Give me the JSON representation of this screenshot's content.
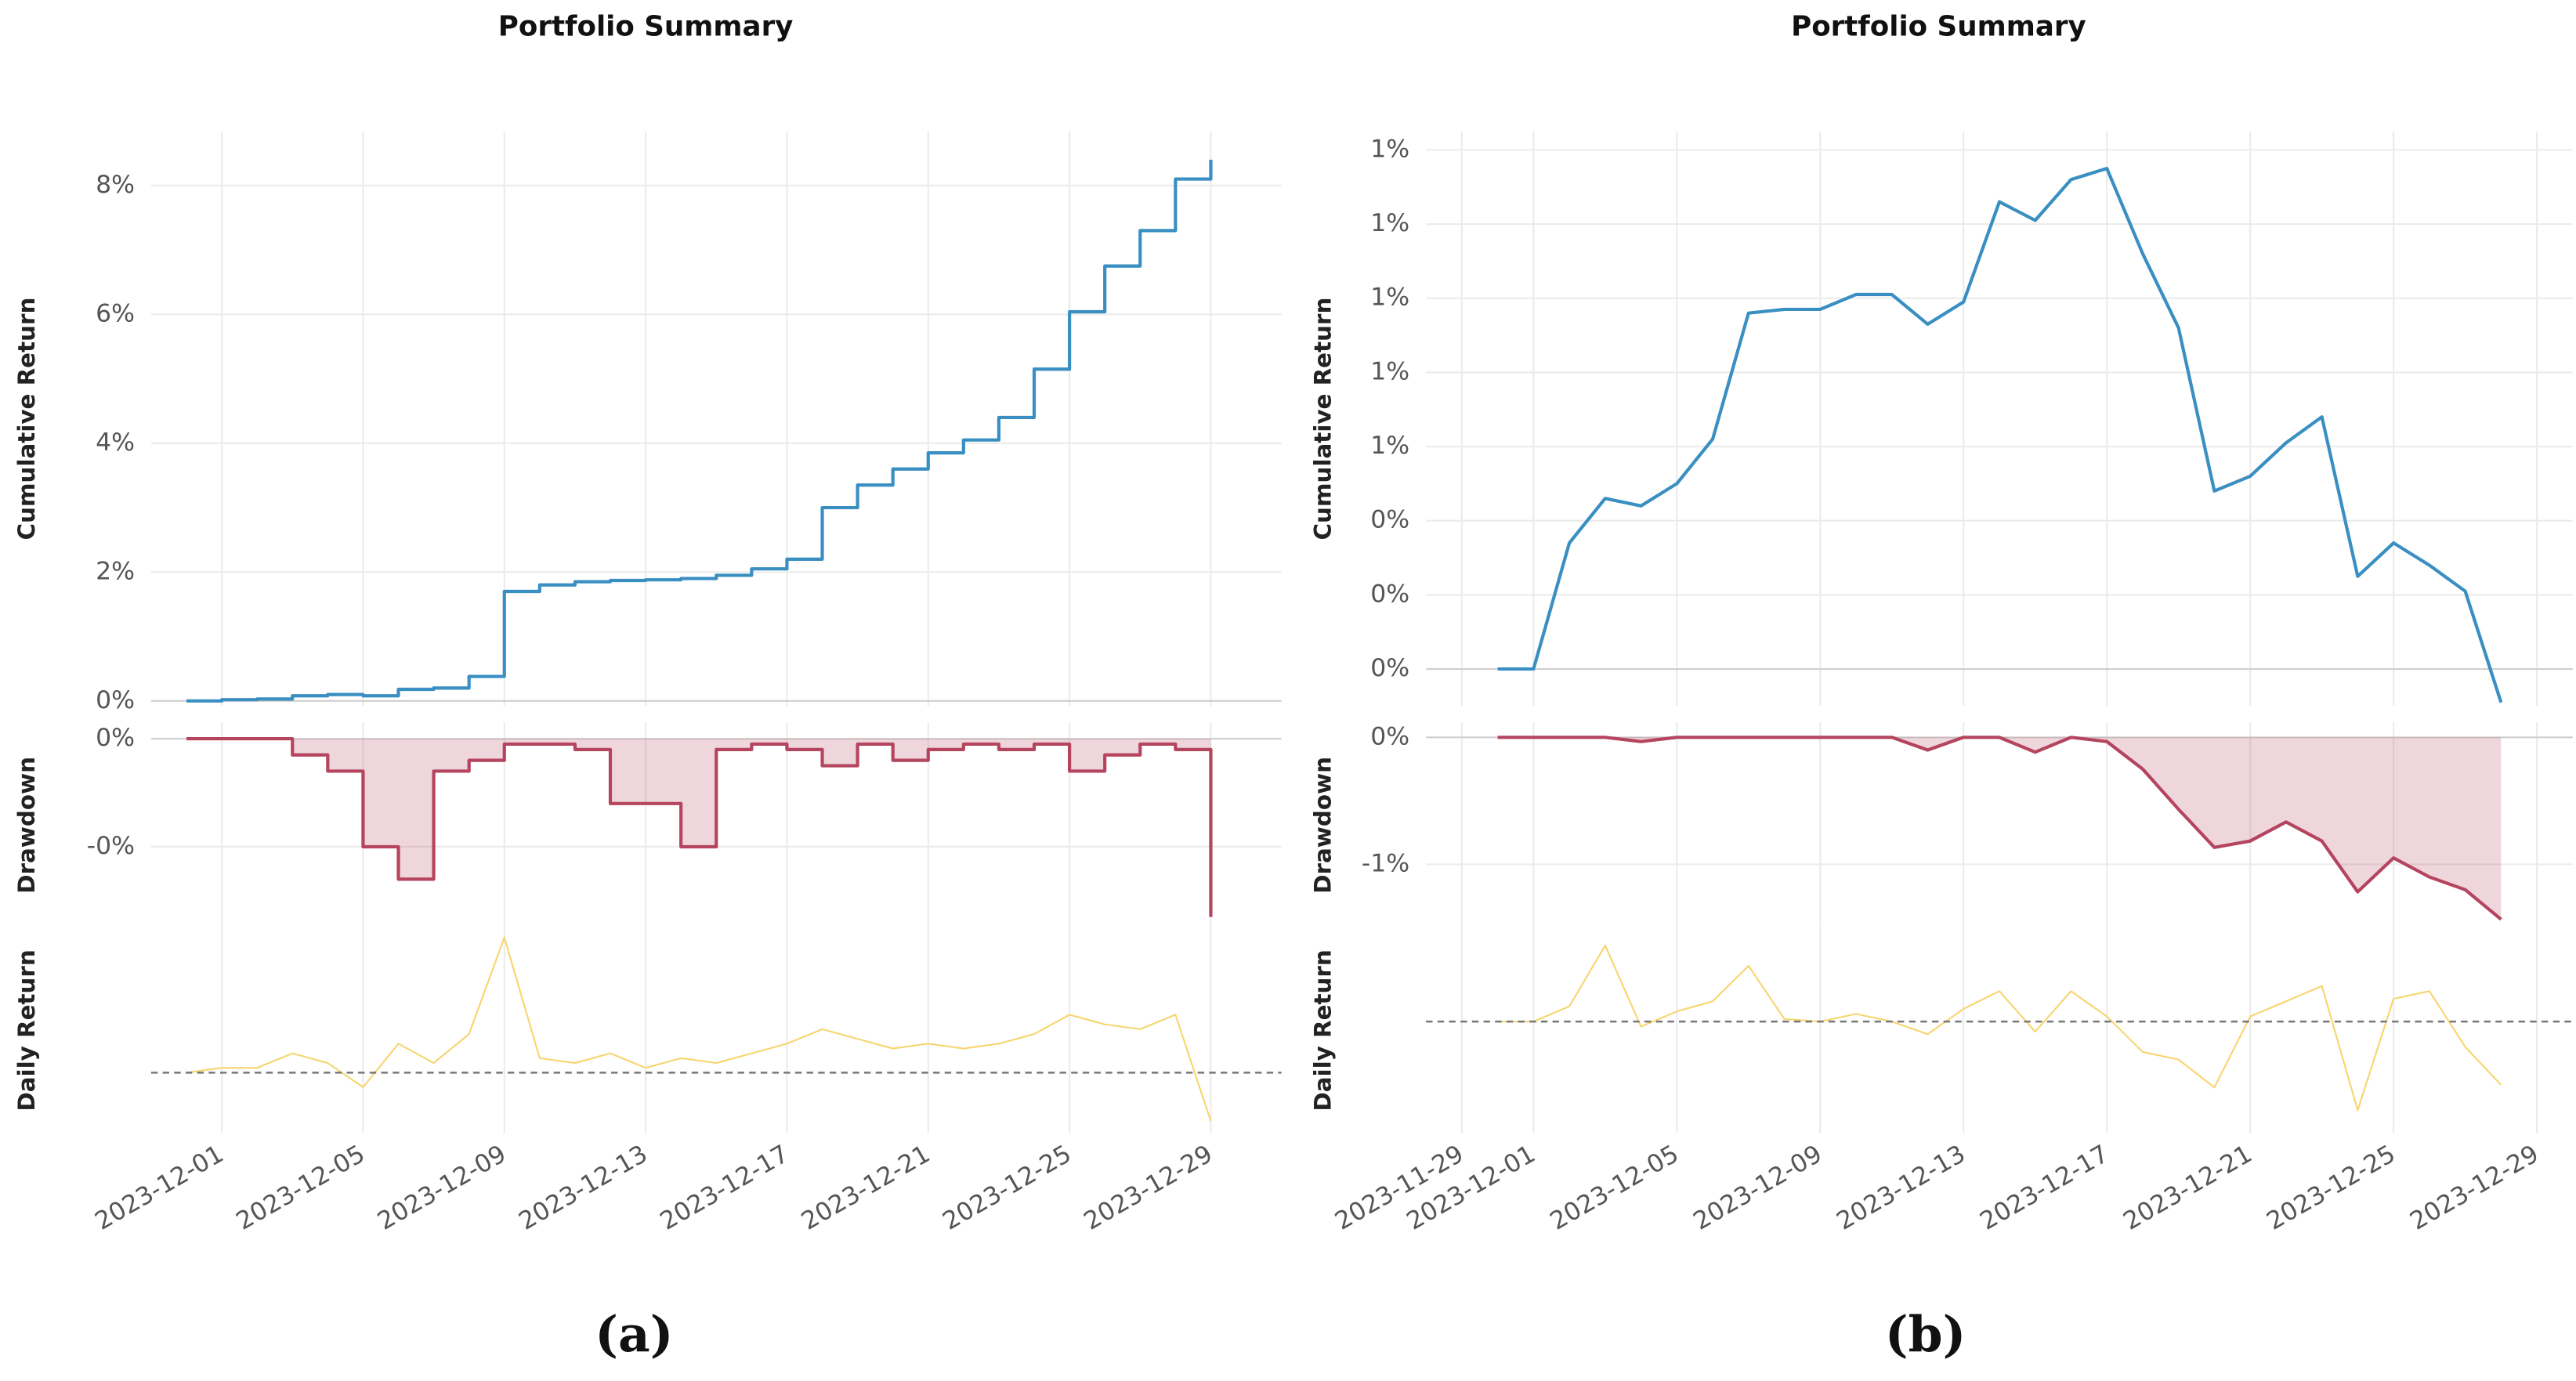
{
  "chart_data": [
    {
      "type": "line",
      "title": "Portfolio Summary",
      "caption": "(a)",
      "x": [
        "2023-11-30",
        "2023-12-01",
        "2023-12-02",
        "2023-12-03",
        "2023-12-04",
        "2023-12-05",
        "2023-12-06",
        "2023-12-07",
        "2023-12-08",
        "2023-12-09",
        "2023-12-10",
        "2023-12-11",
        "2023-12-12",
        "2023-12-13",
        "2023-12-14",
        "2023-12-15",
        "2023-12-16",
        "2023-12-17",
        "2023-12-18",
        "2023-12-19",
        "2023-12-20",
        "2023-12-21",
        "2023-12-22",
        "2023-12-23",
        "2023-12-24",
        "2023-12-25",
        "2023-12-26",
        "2023-12-27",
        "2023-12-28",
        "2023-12-29"
      ],
      "xlim": [
        "2023-11-29",
        "2023-12-31"
      ],
      "xticks": [
        "2023-12-01",
        "2023-12-05",
        "2023-12-09",
        "2023-12-13",
        "2023-12-17",
        "2023-12-21",
        "2023-12-25",
        "2023-12-29"
      ],
      "grid": true,
      "panels": [
        {
          "ylabel": "Cumulative Return",
          "ylim": [
            -0.08,
            8.84
          ],
          "yticks": [
            {
              "value": 0,
              "label": "0%"
            },
            {
              "value": 2,
              "label": "2%"
            },
            {
              "value": 4,
              "label": "4%"
            },
            {
              "value": 6,
              "label": "6%"
            },
            {
              "value": 8,
              "label": "8%"
            }
          ],
          "series": [
            {
              "color": "#3a8fc2",
              "step": true,
              "values": [
                0,
                0.02,
                0.03,
                0.08,
                0.1,
                0.08,
                0.18,
                0.2,
                0.38,
                1.7,
                1.8,
                1.85,
                1.87,
                1.88,
                1.9,
                1.95,
                2.05,
                2.2,
                3.0,
                3.35,
                3.6,
                3.85,
                4.05,
                4.4,
                5.15,
                6.04,
                6.75,
                7.3,
                8.1,
                8.4
              ]
            }
          ]
        },
        {
          "ylabel": "Drawdown",
          "ylim": [
            -0.35,
            0.03
          ],
          "yticks": [
            {
              "value": 0,
              "label": "0%"
            },
            {
              "value": -0.2,
              "label": "-0%"
            }
          ],
          "series": [
            {
              "color": "#b5445f",
              "step": true,
              "fill": true,
              "values": [
                0,
                0,
                0,
                -0.03,
                -0.06,
                -0.2,
                -0.26,
                -0.06,
                -0.04,
                -0.01,
                -0.01,
                -0.02,
                -0.12,
                -0.12,
                -0.2,
                -0.02,
                -0.01,
                -0.02,
                -0.05,
                -0.01,
                -0.04,
                -0.02,
                -0.01,
                -0.02,
                -0.01,
                -0.06,
                -0.03,
                -0.01,
                -0.02,
                -0.33
              ]
            }
          ]
        },
        {
          "ylabel": "Daily Return",
          "ylim": [
            -0.125,
            0.3
          ],
          "hline": 0,
          "hline_style": "dashed",
          "series": [
            {
              "color": "#f7d56e",
              "step": false,
              "values": [
                0,
                0.01,
                0.01,
                0.04,
                0.02,
                -0.03,
                0.06,
                0.02,
                0.08,
                0.28,
                0.03,
                0.02,
                0.04,
                0.01,
                0.03,
                0.02,
                0.04,
                0.06,
                0.09,
                0.07,
                0.05,
                0.06,
                0.05,
                0.06,
                0.08,
                0.12,
                0.1,
                0.09,
                0.12,
                -0.1
              ]
            }
          ]
        }
      ]
    },
    {
      "type": "line",
      "title": "Portfolio Summary",
      "caption": "(b)",
      "x": [
        "2023-11-30",
        "2023-12-01",
        "2023-12-02",
        "2023-12-03",
        "2023-12-04",
        "2023-12-05",
        "2023-12-06",
        "2023-12-07",
        "2023-12-08",
        "2023-12-09",
        "2023-12-10",
        "2023-12-11",
        "2023-12-12",
        "2023-12-13",
        "2023-12-14",
        "2023-12-15",
        "2023-12-16",
        "2023-12-17",
        "2023-12-18",
        "2023-12-19",
        "2023-12-20",
        "2023-12-21",
        "2023-12-22",
        "2023-12-23",
        "2023-12-24",
        "2023-12-25",
        "2023-12-26",
        "2023-12-27",
        "2023-12-28"
      ],
      "xlim": [
        "2023-11-28",
        "2023-12-30"
      ],
      "xticks": [
        "2023-11-29",
        "2023-12-01",
        "2023-12-05",
        "2023-12-09",
        "2023-12-13",
        "2023-12-17",
        "2023-12-21",
        "2023-12-25",
        "2023-12-29"
      ],
      "grid": true,
      "panels": [
        {
          "ylabel": "Cumulative Return",
          "ylim": [
            -0.1,
            1.45
          ],
          "yticks": [
            {
              "value": 0,
              "label": "0%"
            },
            {
              "value": 0.2,
              "label": "0%"
            },
            {
              "value": 0.4,
              "label": "0%"
            },
            {
              "value": 0.6,
              "label": "1%"
            },
            {
              "value": 0.8,
              "label": "1%"
            },
            {
              "value": 1.0,
              "label": "1%"
            },
            {
              "value": 1.2,
              "label": "1%"
            },
            {
              "value": 1.4,
              "label": "1%"
            }
          ],
          "series": [
            {
              "color": "#3a8fc2",
              "step": false,
              "values": [
                0,
                0,
                0.34,
                0.46,
                0.44,
                0.5,
                0.62,
                0.96,
                0.97,
                0.97,
                1.01,
                1.01,
                0.93,
                0.99,
                1.26,
                1.21,
                1.32,
                1.35,
                1.12,
                0.92,
                0.48,
                0.52,
                0.61,
                0.68,
                0.25,
                0.34,
                0.28,
                0.21,
                -0.09
              ]
            }
          ]
        },
        {
          "ylabel": "Drawdown",
          "ylim": [
            -0.9,
            0.07
          ],
          "yticks": [
            {
              "value": 0,
              "label": "0%"
            },
            {
              "value": -0.6,
              "label": "-1%"
            }
          ],
          "series": [
            {
              "color": "#b5445f",
              "step": false,
              "fill": true,
              "values": [
                0,
                0,
                0,
                0,
                -0.02,
                0,
                0,
                0,
                0,
                0,
                0,
                0,
                -0.06,
                0,
                0,
                -0.07,
                0,
                -0.02,
                -0.15,
                -0.34,
                -0.52,
                -0.49,
                -0.4,
                -0.49,
                -0.73,
                -0.57,
                -0.66,
                -0.72,
                -0.86
              ]
            }
          ]
        },
        {
          "ylabel": "Daily Return",
          "ylim": [
            -0.44,
            0.37
          ],
          "hline": 0,
          "hline_style": "dashed",
          "series": [
            {
              "color": "#f7d56e",
              "step": false,
              "values": [
                0,
                0,
                0.06,
                0.3,
                -0.02,
                0.04,
                0.08,
                0.22,
                0.01,
                0,
                0.03,
                0,
                -0.05,
                0.05,
                0.12,
                -0.04,
                0.12,
                0.02,
                -0.12,
                -0.15,
                -0.26,
                0.02,
                0.08,
                0.14,
                -0.35,
                0.09,
                0.12,
                -0.1,
                -0.25
              ]
            }
          ]
        }
      ]
    }
  ]
}
